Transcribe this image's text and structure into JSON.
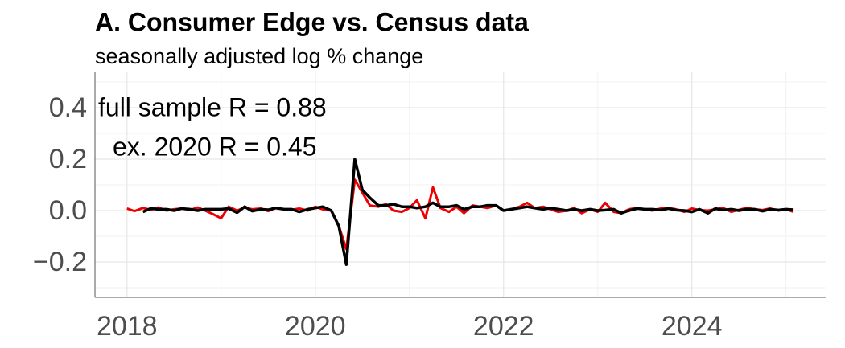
{
  "chart_data": {
    "type": "line",
    "title": "A. Consumer Edge vs. Census data",
    "subtitle": "seasonally adjusted log % change",
    "annotations": [
      "full sample R = 0.88",
      "ex. 2020 R = 0.45"
    ],
    "x": [
      2018.0,
      2018.08,
      2018.17,
      2018.25,
      2018.33,
      2018.42,
      2018.5,
      2018.58,
      2018.67,
      2018.75,
      2018.83,
      2018.92,
      2019.0,
      2019.08,
      2019.17,
      2019.25,
      2019.33,
      2019.42,
      2019.5,
      2019.58,
      2019.67,
      2019.75,
      2019.83,
      2019.92,
      2020.0,
      2020.08,
      2020.17,
      2020.25,
      2020.33,
      2020.42,
      2020.5,
      2020.58,
      2020.67,
      2020.75,
      2020.83,
      2020.92,
      2021.0,
      2021.08,
      2021.17,
      2021.25,
      2021.33,
      2021.42,
      2021.5,
      2021.58,
      2021.67,
      2021.75,
      2021.83,
      2021.92,
      2022.0,
      2022.08,
      2022.17,
      2022.25,
      2022.33,
      2022.42,
      2022.5,
      2022.58,
      2022.67,
      2022.75,
      2022.83,
      2022.92,
      2023.0,
      2023.08,
      2023.17,
      2023.25,
      2023.33,
      2023.42,
      2023.5,
      2023.58,
      2023.67,
      2023.75,
      2023.83,
      2023.92,
      2024.0,
      2024.08,
      2024.17,
      2024.25,
      2024.33,
      2024.42,
      2024.5,
      2024.58,
      2024.67,
      2024.75,
      2024.83,
      2024.92,
      2025.0,
      2025.08
    ],
    "series": [
      {
        "color": "#ee0000",
        "width": 3,
        "values": [
          0.008,
          -0.002,
          0.01,
          0.003,
          0.012,
          0.0,
          0.005,
          0.008,
          0.002,
          0.012,
          0.0,
          -0.015,
          -0.03,
          0.015,
          0.0,
          0.012,
          0.005,
          0.008,
          -0.002,
          0.01,
          0.005,
          0.003,
          0.008,
          0.0,
          0.015,
          0.005,
          0.0,
          -0.06,
          -0.15,
          0.12,
          0.07,
          0.02,
          0.015,
          0.025,
          0.0,
          -0.005,
          0.01,
          0.04,
          -0.03,
          0.09,
          0.01,
          -0.005,
          0.015,
          -0.01,
          0.02,
          0.015,
          0.01,
          0.02,
          0.0,
          0.005,
          0.015,
          0.03,
          0.01,
          0.015,
          0.005,
          -0.005,
          0.0,
          0.01,
          -0.01,
          0.005,
          -0.005,
          0.03,
          -0.005,
          -0.01,
          0.005,
          0.01,
          0.005,
          0.0,
          0.008,
          0.01,
          0.005,
          -0.005,
          0.008,
          0.002,
          0.0,
          0.005,
          0.01,
          -0.005,
          0.003,
          0.01,
          0.005,
          0.002,
          0.008,
          0.0,
          0.005,
          -0.005
        ]
      },
      {
        "color": "#000000",
        "width": 3.5,
        "values": [
          null,
          null,
          -0.005,
          0.008,
          0.005,
          0.005,
          0.0,
          0.008,
          0.005,
          0.0,
          0.005,
          0.005,
          0.005,
          0.008,
          -0.008,
          0.015,
          -0.002,
          0.005,
          0.003,
          0.01,
          0.005,
          0.005,
          -0.005,
          0.005,
          0.01,
          0.015,
          0.0,
          -0.06,
          -0.21,
          0.2,
          0.08,
          0.05,
          0.02,
          0.02,
          0.025,
          0.015,
          0.015,
          0.01,
          0.015,
          0.03,
          0.015,
          0.015,
          0.02,
          0.005,
          0.015,
          0.015,
          0.02,
          0.02,
          0.0,
          0.005,
          0.01,
          0.015,
          0.01,
          0.005,
          0.01,
          0.005,
          0.0,
          0.005,
          0.0,
          0.005,
          0.0,
          0.002,
          0.005,
          -0.01,
          0.0,
          0.008,
          0.005,
          0.005,
          0.002,
          0.008,
          0.002,
          0.0,
          -0.005,
          0.005,
          -0.01,
          0.008,
          0.002,
          0.005,
          0.0,
          0.005,
          0.005,
          -0.002,
          0.005,
          0.002,
          0.005,
          0.003
        ]
      }
    ],
    "xlim": [
      2017.66,
      2025.43
    ],
    "xticks": [
      2018,
      2020,
      2022,
      2024
    ],
    "xminor": [
      2019,
      2021,
      2023,
      2025
    ],
    "ylim": [
      -0.3375,
      0.5375
    ],
    "yticks": [
      {
        "value": -0.2,
        "label": "−0.2"
      },
      {
        "value": 0,
        "label": "0.0"
      },
      0.2,
      0.4
    ],
    "yminor": [
      -0.3,
      -0.1,
      0.1,
      0.3,
      0.5
    ],
    "grid": true
  }
}
